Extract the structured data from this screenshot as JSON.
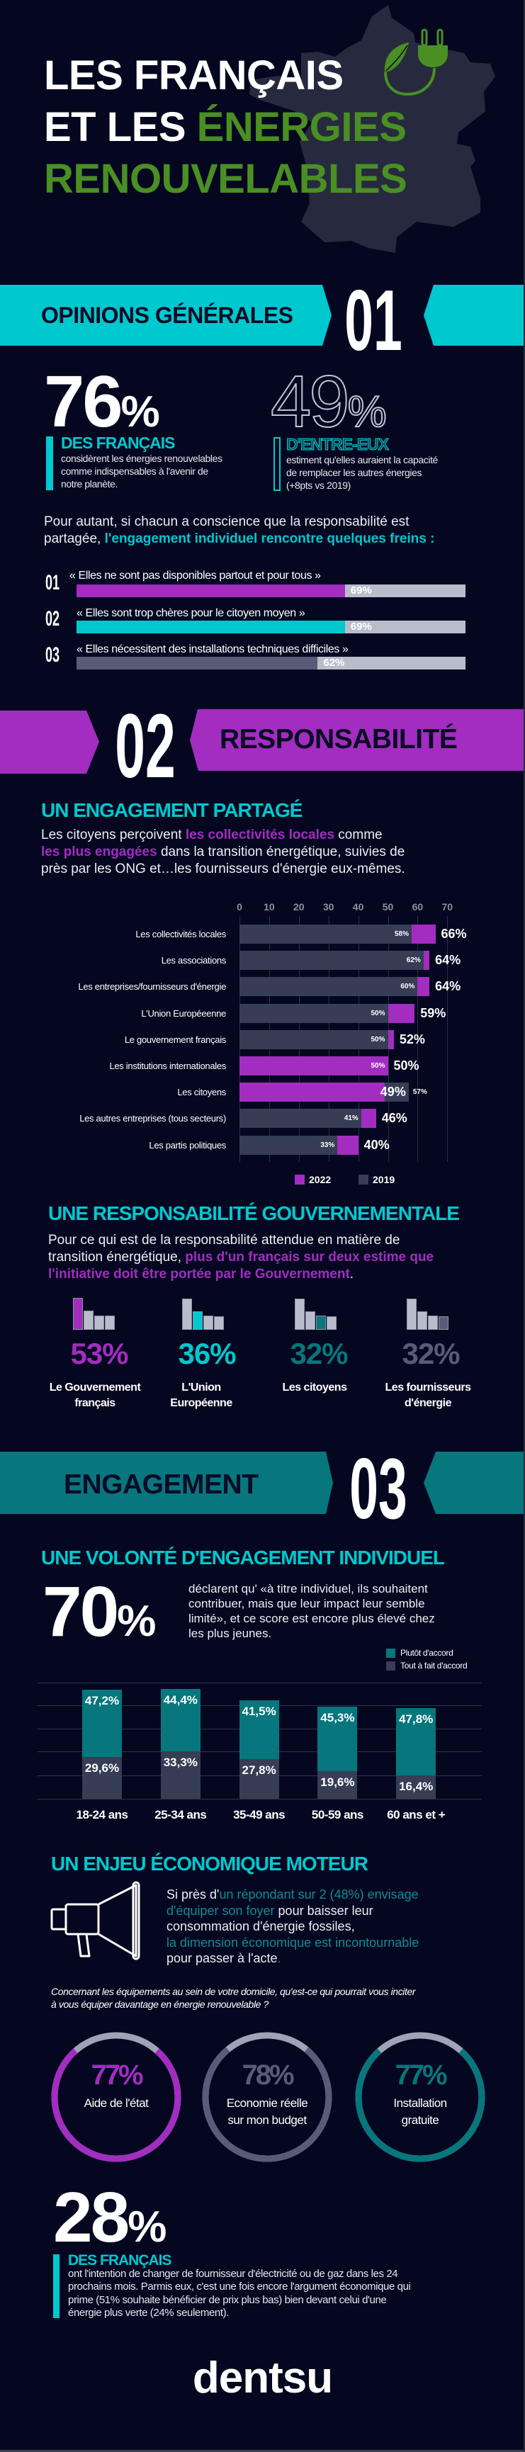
{
  "colors": {
    "background": "#050720",
    "cyan": "#00c8cf",
    "purple": "#a22dc0",
    "teal": "#07767d",
    "green": "#4a8f23",
    "bar_gray": "#363d55",
    "light_gray": "#b9bdcb",
    "slate": "#5a5b78"
  },
  "header": {
    "title_line1": "LES FRANÇAIS",
    "title_line2_a": "ET LES ",
    "title_line2_b": "ÉNERGIES",
    "title_line3": "RENOUVELABLES",
    "icons": [
      "france-map-icon",
      "leaf-plug-icon"
    ]
  },
  "sections": [
    {
      "label": "OPINIONS GÉNÉRALES",
      "number": "01",
      "color": "#00c8cf"
    },
    {
      "label": "RESPONSABILITÉ",
      "number": "02",
      "color": "#a22dc0"
    },
    {
      "label": "ENGAGEMENT",
      "number": "03",
      "color": "#07767d"
    }
  ],
  "opinions": {
    "stat1": {
      "value": "76",
      "unit": "%",
      "heading": "DES FRANÇAIS",
      "lines": [
        "considèrent les énergies renouvelables",
        "comme indispensables à l'avenir de",
        "notre planète."
      ]
    },
    "stat2": {
      "value": "49",
      "unit": "%",
      "heading": "D'ENTRE-EUX",
      "lines": [
        "estiment qu'elles auraient la capacité",
        "de remplacer les autres énergies",
        "(+8pts vs 2019)"
      ]
    },
    "intro": {
      "line1": "Pour autant, si chacun a conscience que la responsabilité est",
      "line2_a": "partagée, ",
      "line2_b": "l'engagement individuel rencontre quelques freins",
      "line2_c": " :"
    },
    "freins": [
      {
        "number": "01",
        "quote": "« Elles ne sont pas disponibles partout et pour tous »",
        "value": 69,
        "label": "69%",
        "color": "#a22dc0"
      },
      {
        "number": "02",
        "quote": "« Elles sont trop chères pour le citoyen moyen »",
        "value": 69,
        "label": "69%",
        "color": "#00c8cf"
      },
      {
        "number": "03",
        "quote": "« Elles nécessitent des installations techniques difficiles »",
        "value": 62,
        "label": "62%",
        "color": "#5a5b78"
      }
    ]
  },
  "responsabilite": {
    "heading": "UN ENGAGEMENT PARTAGÉ",
    "para": {
      "l1_a": "Les citoyens perçoivent ",
      "l1_b": "les collectivités locales",
      "l1_c": " comme",
      "l2_a": "les plus engagées",
      "l2_b": " dans la transition énergétique, suivies de",
      "l3": "près par les ONG et…les fournisseurs d'énergie eux-mêmes."
    }
  },
  "gouvernementale": {
    "heading": "UNE RESPONSABILITÉ GOUVERNEMENTALE",
    "para": {
      "l1": "Pour ce qui est de la responsabilité attendue en matière de",
      "l2_a": "transition énergétique, ",
      "l2_b": "plus d'un français sur deux estime que",
      "l3_a": "l'initiative doit être portée par le Gouvernement",
      "l3_b": "."
    },
    "items": [
      {
        "value": "53%",
        "label_l1": "Le Gouvernement",
        "label_l2": "français",
        "color": "#a22dc0"
      },
      {
        "value": "36%",
        "label_l1": "L'Union",
        "label_l2": "Européenne",
        "color": "#00c8cf"
      },
      {
        "value": "32%",
        "label_l1": "Les citoyens",
        "label_l2": "",
        "color": "#07767d"
      },
      {
        "value": "32%",
        "label_l1": "Les fournisseurs",
        "label_l2": "d'énergie",
        "color": "#5a5b78"
      }
    ]
  },
  "engagement": {
    "heading": "UNE VOLONTÉ D'ENGAGEMENT INDIVIDUEL",
    "stat": {
      "value": "70",
      "unit": "%",
      "lines": [
        "déclarent qu' «à titre individuel, ils souhaitent",
        "contribuer, mais que leur impact leur semble",
        "limité», et ce score est encore plus élevé chez",
        "les plus jeunes."
      ]
    }
  },
  "economique": {
    "heading": "UN ENJEU ÉCONOMIQUE MOTEUR",
    "para": {
      "l1_a": "Si près d'",
      "l1_b": "un répondant sur 2 (48%) envisage",
      "l2_a": "d'équiper son foyer",
      "l2_b": " pour baisser leur",
      "l3": "consommation d'énergie fossiles,",
      "l4": "la dimension économique est incontournable",
      "l5_a": "pour passer à l'acte",
      "l5_b": "."
    },
    "question_l1": "Concernant les équipements au sein de votre domicile, qu'est-ce qui pourrait vous inciter",
    "question_l2": "à vous équiper davantage en énergie renouvelable ?",
    "circles": [
      {
        "value": 77,
        "label": "77%",
        "text_l1": "Aide de l'état",
        "text_l2": "",
        "color": "#a22dc0"
      },
      {
        "value": 78,
        "label": "78%",
        "text_l1": "Economie réelle",
        "text_l2": "sur mon budget",
        "color": "#5a5b78"
      },
      {
        "value": 77,
        "label": "77%",
        "text_l1": "Installation",
        "text_l2": "gratuite",
        "color": "#07767d"
      }
    ]
  },
  "fournisseur": {
    "value": "28",
    "unit": "%",
    "heading": "DES FRANÇAIS",
    "lines": [
      "ont l'intention de changer de fournisseur d'électricité ou de gaz dans les 24",
      "prochains mois. Parmis eux, c'est une fois encore l'argument économique qui",
      "prime (51% souhaite bénéficier de prix plus bas) bien devant celui d'une",
      "énergie plus verte (24% seulement)."
    ]
  },
  "footer": {
    "logo": "dentsu"
  },
  "chart_data": [
    {
      "type": "bar",
      "orientation": "horizontal",
      "categories": [
        "Les collectivités locales",
        "Les associations",
        "Les entreprises/fournisseurs d'énergie",
        "L'Union Européeenne",
        "Le gouvernement français",
        "Les institutions internationales",
        "Les citoyens",
        "Les autres entreprises (tous secteurs)",
        "Les partis politiques"
      ],
      "series": [
        {
          "name": "2022",
          "color": "#a22dc0",
          "values": [
            66,
            64,
            64,
            59,
            52,
            50,
            49,
            46,
            40
          ],
          "labels": [
            "66%",
            "64%",
            "64%",
            "59%",
            "52%",
            "50%",
            "49%",
            "46%",
            "40%"
          ]
        },
        {
          "name": "2019",
          "color": "#363d55",
          "values": [
            58,
            62,
            60,
            50,
            50,
            50,
            57,
            41,
            33
          ],
          "labels": [
            "58%",
            "62%",
            "60%",
            "50%",
            "50%",
            "50%",
            "57%",
            "41%",
            "33%"
          ]
        }
      ],
      "xlim": [
        0,
        70
      ],
      "ticks": [
        "0",
        "10",
        "20",
        "30",
        "40",
        "50",
        "60",
        "70"
      ],
      "grid": true,
      "legend": "bottom"
    },
    {
      "type": "bar",
      "stacked": true,
      "categories": [
        "18-24 ans",
        "25-34 ans",
        "35-49 ans",
        "50-59 ans",
        "60 ans et +"
      ],
      "series": [
        {
          "name": "Plutôt d'accord",
          "color": "#07767d",
          "values": [
            47.2,
            44.4,
            41.5,
            45.3,
            47.8
          ],
          "labels": [
            "47,2%",
            "44,4%",
            "41,5%",
            "45,3%",
            "47,8%"
          ]
        },
        {
          "name": "Tout à fait d'accord",
          "color": "#363d55",
          "values": [
            29.6,
            33.3,
            27.8,
            19.6,
            16.4
          ],
          "labels": [
            "29,6%",
            "33,3%",
            "27,8%",
            "19,6%",
            "16,4%"
          ]
        }
      ],
      "grid": true,
      "legend": "top-right"
    }
  ]
}
